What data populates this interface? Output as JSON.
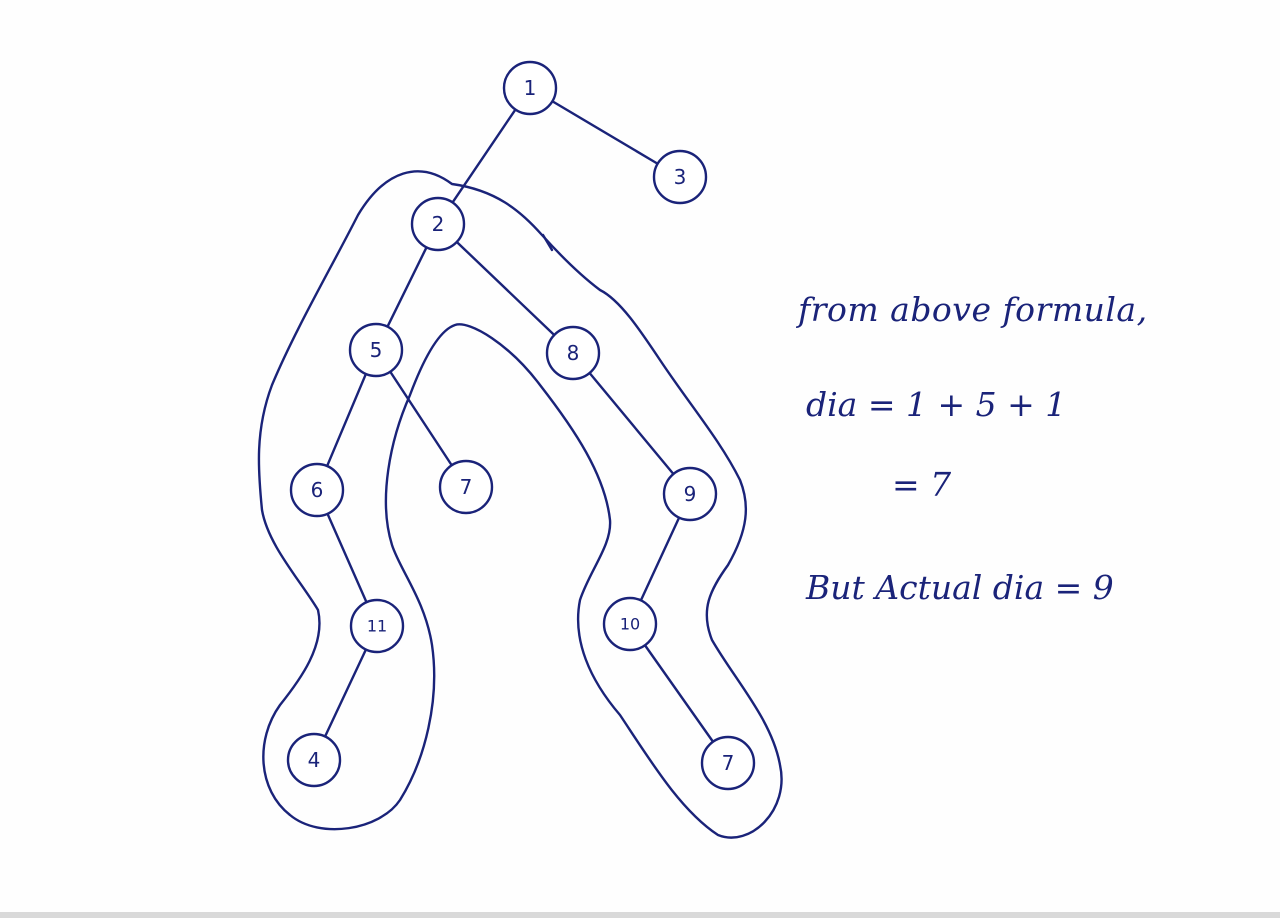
{
  "tree": {
    "nodes": [
      {
        "id": "n1",
        "label": "1"
      },
      {
        "id": "n3",
        "label": "3"
      },
      {
        "id": "n2",
        "label": "2"
      },
      {
        "id": "n5",
        "label": "5"
      },
      {
        "id": "n8",
        "label": "8"
      },
      {
        "id": "n6",
        "label": "6"
      },
      {
        "id": "n7a",
        "label": "7"
      },
      {
        "id": "n9",
        "label": "9"
      },
      {
        "id": "n11",
        "label": "11"
      },
      {
        "id": "n10",
        "label": "10"
      },
      {
        "id": "n4",
        "label": "4"
      },
      {
        "id": "n7b",
        "label": "7"
      }
    ],
    "edges": [
      [
        "n1",
        "n2"
      ],
      [
        "n1",
        "n3"
      ],
      [
        "n2",
        "n5"
      ],
      [
        "n2",
        "n8"
      ],
      [
        "n5",
        "n6"
      ],
      [
        "n5",
        "n7a"
      ],
      [
        "n8",
        "n9"
      ],
      [
        "n6",
        "n11"
      ],
      [
        "n11",
        "n4"
      ],
      [
        "n9",
        "n10"
      ],
      [
        "n10",
        "n7b"
      ]
    ]
  },
  "notes": {
    "line1": "from above formula,",
    "line2": "dia =  1 + 5 + 1",
    "line3": "= 7",
    "line4": "But Actual dia = 9"
  },
  "colors": {
    "ink": "#1a2379",
    "paper": "#fefefe"
  }
}
